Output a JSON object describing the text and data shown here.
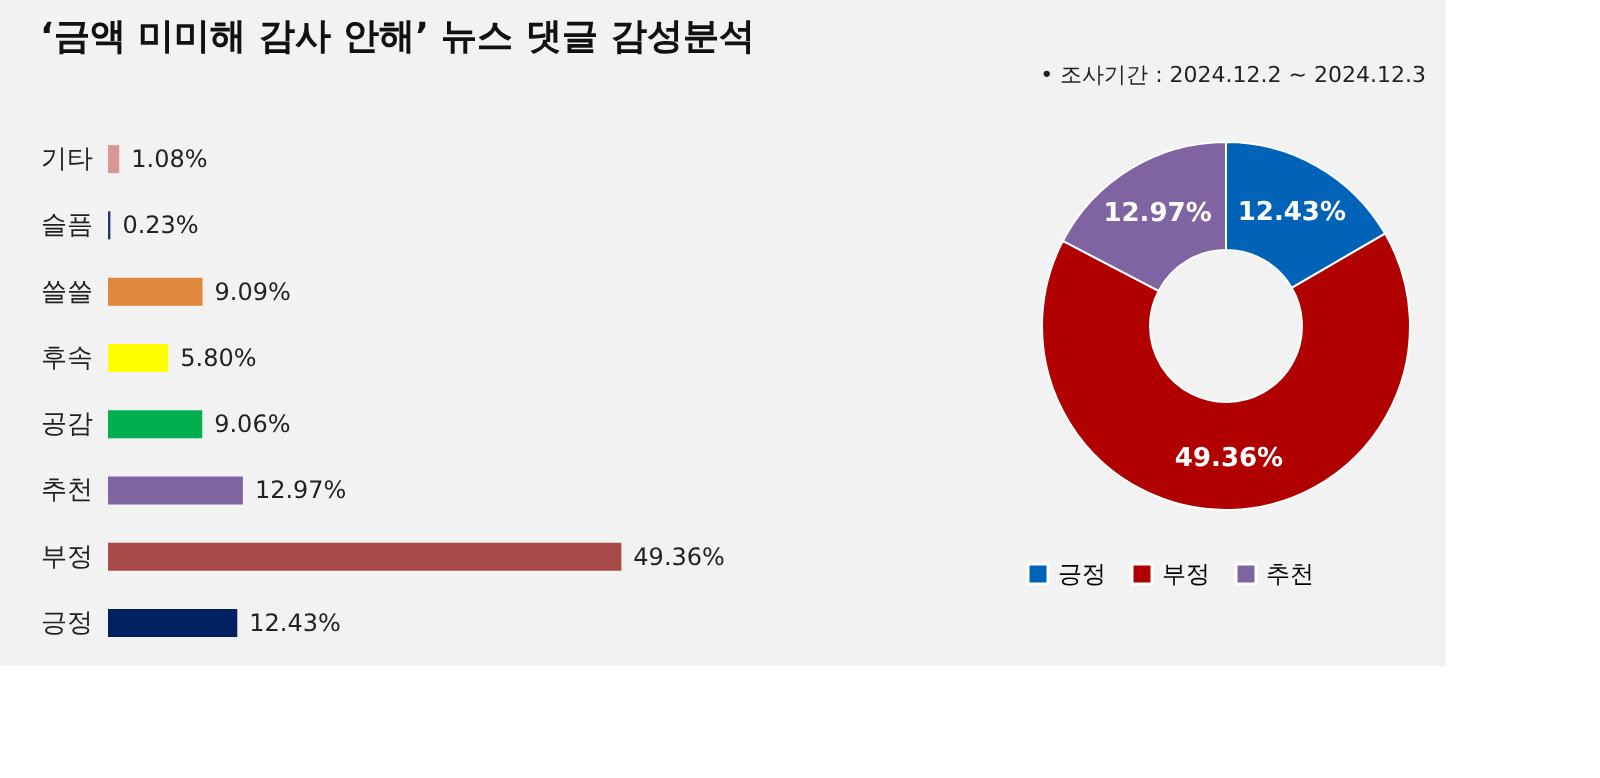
{
  "chart_data": [
    {
      "type": "bar",
      "title": "‘금액 미미해 감사 안해’ 뉴스 댓글 감성분석",
      "orientation": "horizontal",
      "data_labels": true,
      "grid": false,
      "categories": [
        "기타",
        "슬픔",
        "쓸쓸",
        "후속",
        "공감",
        "추천",
        "부정",
        "긍정"
      ],
      "values": [
        1.08,
        0.23,
        9.09,
        5.8,
        9.06,
        12.97,
        49.36,
        12.43
      ],
      "value_labels": [
        "1.08%",
        "0.23%",
        "9.09%",
        "5.80%",
        "9.06%",
        "12.97%",
        "49.36%",
        "12.43%"
      ],
      "colors": [
        "#d99694",
        "#1f3864",
        "#e0873e",
        "#ffff00",
        "#00b050",
        "#8064a2",
        "#a84a48",
        "#002060"
      ]
    },
    {
      "type": "donut",
      "annotations": [
        "•   조사기간 : 2024.12.2 ~ 2024.12.3"
      ],
      "legend": "bottom",
      "data_labels": true,
      "categories": [
        "긍정",
        "부정",
        "추천"
      ],
      "values": [
        12.43,
        49.36,
        12.97
      ],
      "value_labels": [
        "12.43%",
        "49.36%",
        "12.97%"
      ],
      "colors": [
        "#0063b8",
        "#b00000",
        "#8064a2"
      ]
    }
  ]
}
